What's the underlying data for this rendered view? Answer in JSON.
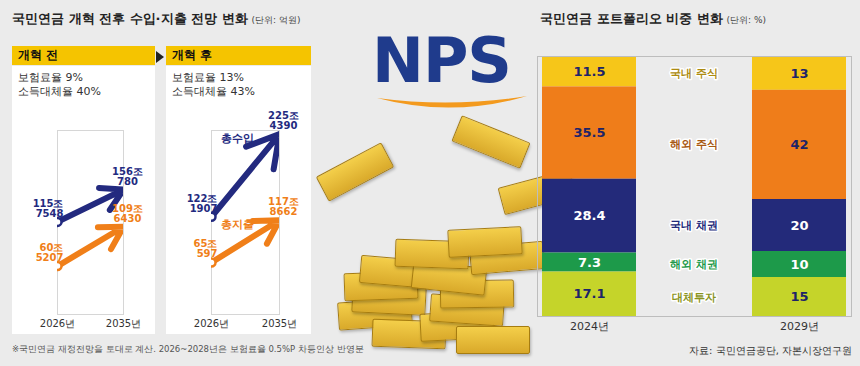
{
  "logo": "NPS",
  "chart_data": [
    {
      "type": "arrow",
      "title": "국민연금 개혁 전후 수입·지출 전망 변화",
      "subtitle": "(단위: 억원)",
      "panel_title": "개혁 전",
      "annotations": [
        "보험료율 9%",
        "소득대체율 40%"
      ],
      "note": "※국민연금 재정전망을 토대로 계산. 2026~2028년은 보험료율 0.5%P 차등인상 반영분",
      "categories": [
        "2026년",
        "2035년"
      ],
      "series": [
        {
          "color": "#232a7f",
          "values": [
            1157548,
            1560780
          ],
          "value_labels": [
            "115조 7548",
            "156조 780"
          ]
        },
        {
          "color": "#f07f19",
          "values": [
            605207,
            1096430
          ],
          "value_labels": [
            "60조 5207",
            "109조 6430"
          ]
        }
      ],
      "ylim": [
        0,
        2300000
      ],
      "data_labels": true,
      "tick_labels": "x"
    },
    {
      "type": "arrow",
      "panel_title": "개혁 후",
      "annotations": [
        "보험료율 13%",
        "소득대체율 43%"
      ],
      "categories": [
        "2026년",
        "2035년"
      ],
      "series": [
        {
          "name": "총수입",
          "color": "#232a7f",
          "values": [
            1221907,
            2254390
          ],
          "value_labels": [
            "122조 1907",
            "225조 4390"
          ]
        },
        {
          "name": "총지출",
          "color": "#f07f19",
          "values": [
            650597,
            1178662
          ],
          "value_labels": [
            "65조 597",
            "117조 8662"
          ]
        }
      ],
      "ylim": [
        0,
        2300000
      ],
      "data_labels": true,
      "tick_labels": "x"
    },
    {
      "type": "bar",
      "stacked": true,
      "title": "국민연금 포트폴리오 비중 변화",
      "subtitle": "(단위: %)",
      "source": "자료: 국민연금공단, 자본시장연구원",
      "categories": [
        "2024년",
        "2029년"
      ],
      "series": [
        {
          "name": "국내 주식",
          "color": "#f6c619",
          "values": [
            11.5,
            13
          ]
        },
        {
          "name": "해외 주식",
          "color": "#ef7d1a",
          "values": [
            35.5,
            42
          ]
        },
        {
          "name": "국내 채권",
          "color": "#232a7a",
          "values": [
            28.4,
            20
          ]
        },
        {
          "name": "해외 채권",
          "color": "#1d9a4a",
          "values": [
            7.3,
            10
          ]
        },
        {
          "name": "대체투자",
          "color": "#c5d42a",
          "values": [
            17.1,
            15
          ]
        }
      ],
      "ylim": [
        0,
        100
      ],
      "data_labels": true,
      "tick_labels": "x"
    }
  ]
}
